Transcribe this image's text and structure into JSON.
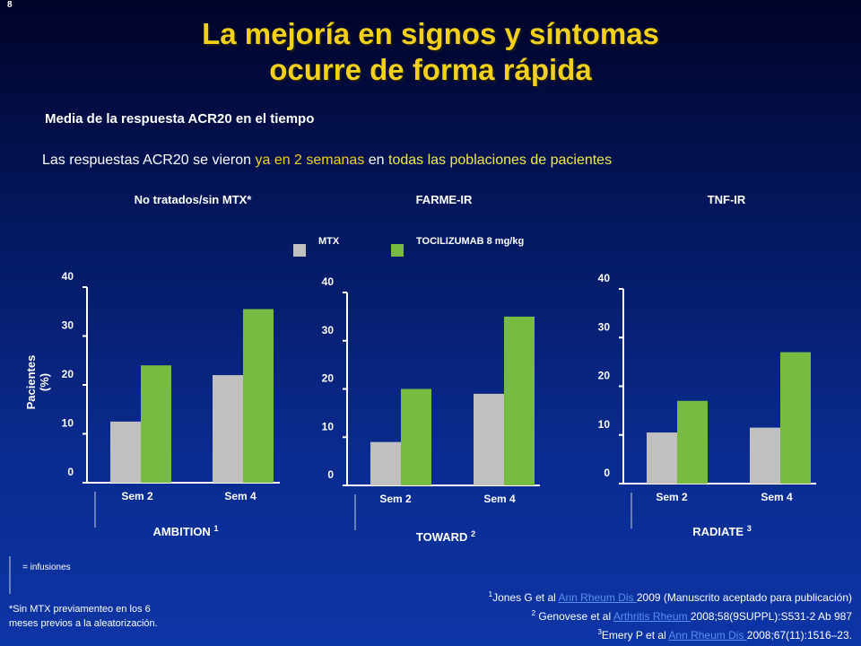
{
  "slide_number": "8",
  "title_line1": "La mejoría en signos y síntomas",
  "title_line2": "ocurre de forma rápida",
  "subtitle": "Media de la respuesta ACR20 en el tiempo",
  "statement": {
    "part1": "Las respuestas ACR20 se vieron ",
    "part2": "ya en 2 semanas",
    "part3": " en ",
    "part4": "todas las poblaciones de pacientes"
  },
  "groups": {
    "g1": "No tratados/sin MTX*",
    "g2": "FARME-IR",
    "g3": "TNF-IR"
  },
  "legend": {
    "mtx": "MTX",
    "tcz": "TOCILIZUMAB 8 mg/kg"
  },
  "colors": {
    "mtx": "#c0c0c0",
    "tcz": "#77bb41",
    "title": "#f3d019"
  },
  "ylabel": "Pacientes (%)",
  "chart_data": [
    {
      "type": "bar",
      "title": "AMBITION",
      "title_sup": "1",
      "categories": [
        "Sem 2",
        "Sem 4"
      ],
      "series": [
        {
          "name": "MTX",
          "values": [
            12.5,
            22
          ]
        },
        {
          "name": "TOCILIZUMAB 8 mg/kg",
          "values": [
            24,
            35.5
          ]
        }
      ],
      "ylim": [
        0,
        40
      ],
      "yticks": [
        "0",
        "10",
        "20",
        "30",
        "40"
      ]
    },
    {
      "type": "bar",
      "title": "TOWARD",
      "title_sup": "2",
      "categories": [
        "Sem 2",
        "Sem 4"
      ],
      "series": [
        {
          "name": "MTX",
          "values": [
            9,
            19
          ]
        },
        {
          "name": "TOCILIZUMAB 8 mg/kg",
          "values": [
            20,
            35
          ]
        }
      ],
      "ylim": [
        0,
        40
      ],
      "yticks": [
        "0",
        "10",
        "20",
        "30",
        "40"
      ]
    },
    {
      "type": "bar",
      "title": "RADIATE",
      "title_sup": "3",
      "categories": [
        "Sem 2",
        "Sem 4"
      ],
      "series": [
        {
          "name": "MTX",
          "values": [
            10.5,
            11.5
          ]
        },
        {
          "name": "TOCILIZUMAB 8 mg/kg",
          "values": [
            17,
            27
          ]
        }
      ],
      "ylim": [
        0,
        40
      ],
      "yticks": [
        "0",
        "10",
        "20",
        "30",
        "40"
      ]
    }
  ],
  "infusion_note": "= infusiones",
  "footnote_line1": "*Sin MTX previamenteo en los 6",
  "footnote_line2": "meses previos a la aleatorización.",
  "refs": [
    {
      "sup": "1",
      "pre": "Jones G et al ",
      "link": "Ann Rheum Dis ",
      "post": "2009 (Manuscrito aceptado para publicación)"
    },
    {
      "sup": "2",
      "pre": " Genovese et al ",
      "link": "Arthritis Rheum ",
      "post": "2008;58(9SUPPL):S531-2  Ab 987"
    },
    {
      "sup": "3",
      "pre": "Emery P et al ",
      "link": "Ann Rheum Dis ",
      "post": "2008;67(11):1516–23."
    }
  ]
}
